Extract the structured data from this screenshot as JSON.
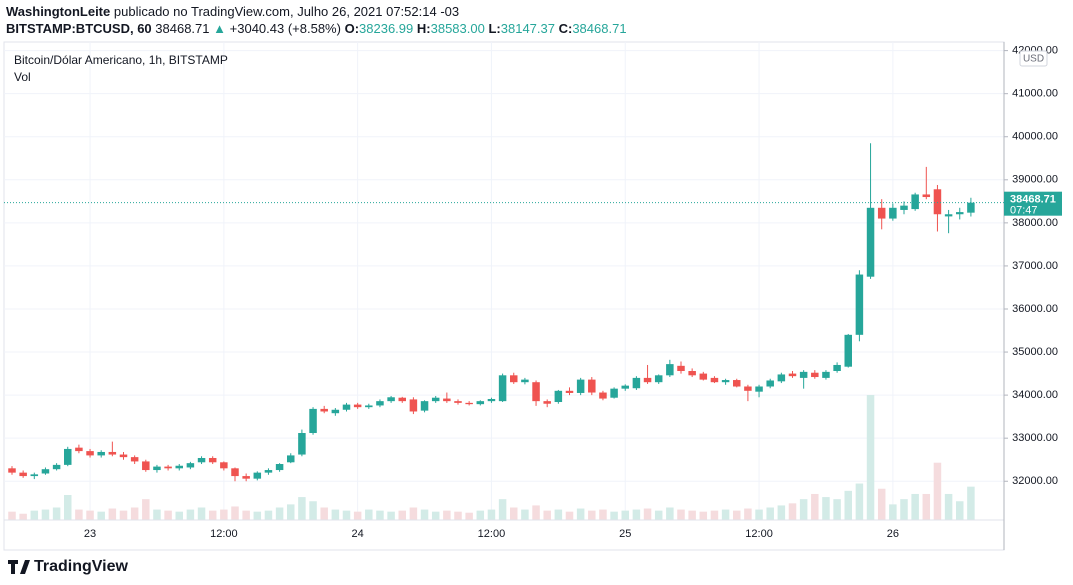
{
  "header": {
    "author": "WashingtonLeite",
    "published": "publicado no TradingView.com, Julho 26, 2021 07:52:14 -03",
    "symbol": "BITSTAMP:BTCUSD, 60",
    "price": "38468.71",
    "arrow": "▲",
    "change": "+3040.43 (+8.58%)",
    "o_label": "O:",
    "o": "38236.99",
    "h_label": "H:",
    "h": "38583.00",
    "l_label": "L:",
    "l": "38147.37",
    "c_label": "C:",
    "c": "38468.71"
  },
  "footer": {
    "brand": "TradingView"
  },
  "chart_data": {
    "type": "candlestick",
    "legend": [
      "Bitcoin/Dólar Americano, 1h, BITSTAMP",
      "Vol"
    ],
    "currency": "USD",
    "up_color": "#26a69a",
    "down_color": "#ef5350",
    "volume_up_color": "#d3ebe7",
    "volume_down_color": "#f5dcde",
    "grid": true,
    "ylim": [
      31100,
      42200
    ],
    "yticks": [
      {
        "value": 32000,
        "label": "32000.00"
      },
      {
        "value": 33000,
        "label": "33000.00"
      },
      {
        "value": 34000,
        "label": "34000.00"
      },
      {
        "value": 35000,
        "label": "35000.00"
      },
      {
        "value": 36000,
        "label": "36000.00"
      },
      {
        "value": 37000,
        "label": "37000.00"
      },
      {
        "value": 38000,
        "label": "38000.00"
      },
      {
        "value": 39000,
        "label": "39000.00"
      },
      {
        "value": 40000,
        "label": "40000.00"
      },
      {
        "value": 41000,
        "label": "41000.00"
      },
      {
        "value": 42000,
        "label": "42000.00"
      }
    ],
    "last_price": {
      "value": 38468.71,
      "label": "38468.71",
      "countdown": "07:47"
    },
    "categories": [
      null,
      null,
      null,
      null,
      null,
      null,
      null,
      "23",
      null,
      null,
      null,
      null,
      null,
      null,
      null,
      null,
      null,
      null,
      null,
      "12:00",
      null,
      null,
      null,
      null,
      null,
      null,
      null,
      null,
      null,
      null,
      null,
      "24",
      null,
      null,
      null,
      null,
      null,
      null,
      null,
      null,
      null,
      null,
      null,
      "12:00",
      null,
      null,
      null,
      null,
      null,
      null,
      null,
      null,
      null,
      null,
      null,
      "25",
      null,
      null,
      null,
      null,
      null,
      null,
      null,
      null,
      null,
      null,
      null,
      "12:00",
      null,
      null,
      null,
      null,
      null,
      null,
      null,
      null,
      null,
      null,
      null,
      "26",
      null,
      null,
      null,
      null,
      null,
      null,
      null
    ],
    "ohlc": [
      [
        32300,
        32350,
        32150,
        32200
      ],
      [
        32200,
        32250,
        32080,
        32120
      ],
      [
        32120,
        32200,
        32050,
        32160
      ],
      [
        32180,
        32320,
        32150,
        32280
      ],
      [
        32280,
        32420,
        32250,
        32380
      ],
      [
        32380,
        32800,
        32350,
        32750
      ],
      [
        32780,
        32850,
        32650,
        32700
      ],
      [
        32700,
        32750,
        32550,
        32600
      ],
      [
        32600,
        32720,
        32550,
        32680
      ],
      [
        32680,
        32920,
        32580,
        32620
      ],
      [
        32620,
        32680,
        32500,
        32560
      ],
      [
        32560,
        32600,
        32400,
        32460
      ],
      [
        32460,
        32500,
        32220,
        32260
      ],
      [
        32260,
        32380,
        32200,
        32340
      ],
      [
        32340,
        32380,
        32250,
        32300
      ],
      [
        32300,
        32400,
        32250,
        32360
      ],
      [
        32320,
        32450,
        32280,
        32420
      ],
      [
        32440,
        32580,
        32400,
        32540
      ],
      [
        32540,
        32580,
        32400,
        32440
      ],
      [
        32440,
        32460,
        32250,
        32300
      ],
      [
        32300,
        32320,
        32000,
        32120
      ],
      [
        32120,
        32180,
        32000,
        32060
      ],
      [
        32060,
        32230,
        32020,
        32200
      ],
      [
        32200,
        32300,
        32150,
        32260
      ],
      [
        32260,
        32420,
        32220,
        32400
      ],
      [
        32440,
        32650,
        32420,
        32600
      ],
      [
        32620,
        33200,
        32580,
        33120
      ],
      [
        33120,
        33720,
        33080,
        33680
      ],
      [
        33680,
        33750,
        33580,
        33620
      ],
      [
        33580,
        33700,
        33520,
        33660
      ],
      [
        33660,
        33820,
        33620,
        33780
      ],
      [
        33780,
        33820,
        33680,
        33720
      ],
      [
        33720,
        33800,
        33680,
        33760
      ],
      [
        33760,
        33900,
        33720,
        33860
      ],
      [
        33860,
        33980,
        33820,
        33950
      ],
      [
        33940,
        33960,
        33820,
        33860
      ],
      [
        33900,
        33950,
        33560,
        33620
      ],
      [
        33640,
        33880,
        33600,
        33860
      ],
      [
        33860,
        33980,
        33820,
        33940
      ],
      [
        33920,
        34060,
        33820,
        33860
      ],
      [
        33860,
        33900,
        33780,
        33820
      ],
      [
        33820,
        33860,
        33760,
        33790
      ],
      [
        33790,
        33880,
        33760,
        33860
      ],
      [
        33860,
        33940,
        33820,
        33910
      ],
      [
        33860,
        34500,
        33840,
        34460
      ],
      [
        34460,
        34520,
        34260,
        34300
      ],
      [
        34300,
        34400,
        34250,
        34360
      ],
      [
        34300,
        34340,
        33750,
        33860
      ],
      [
        33860,
        33900,
        33720,
        33800
      ],
      [
        33840,
        34120,
        33800,
        34100
      ],
      [
        34100,
        34180,
        34000,
        34050
      ],
      [
        34050,
        34400,
        34000,
        34360
      ],
      [
        34360,
        34420,
        34000,
        34060
      ],
      [
        34060,
        34100,
        33880,
        33920
      ],
      [
        33940,
        34180,
        33920,
        34150
      ],
      [
        34150,
        34250,
        34100,
        34220
      ],
      [
        34160,
        34440,
        34120,
        34400
      ],
      [
        34400,
        34700,
        34260,
        34300
      ],
      [
        34300,
        34480,
        34260,
        34460
      ],
      [
        34460,
        34820,
        34420,
        34720
      ],
      [
        34680,
        34780,
        34500,
        34560
      ],
      [
        34560,
        34620,
        34420,
        34460
      ],
      [
        34500,
        34540,
        34340,
        34360
      ],
      [
        34400,
        34440,
        34280,
        34300
      ],
      [
        34300,
        34380,
        34240,
        34350
      ],
      [
        34350,
        34380,
        34180,
        34200
      ],
      [
        34200,
        34240,
        33860,
        34100
      ],
      [
        34080,
        34240,
        33950,
        34200
      ],
      [
        34200,
        34380,
        34160,
        34340
      ],
      [
        34320,
        34520,
        34280,
        34480
      ],
      [
        34500,
        34560,
        34400,
        34440
      ],
      [
        34400,
        34580,
        34150,
        34540
      ],
      [
        34520,
        34580,
        34380,
        34420
      ],
      [
        34400,
        34580,
        34360,
        34540
      ],
      [
        34560,
        34760,
        34520,
        34700
      ],
      [
        34660,
        35420,
        34640,
        35400
      ],
      [
        35400,
        36900,
        35250,
        36800
      ],
      [
        36750,
        39850,
        36700,
        38350
      ],
      [
        38350,
        38550,
        37850,
        38100
      ],
      [
        38100,
        38450,
        38050,
        38350
      ],
      [
        38300,
        38500,
        38200,
        38400
      ],
      [
        38320,
        38700,
        38280,
        38660
      ],
      [
        38660,
        39300,
        38550,
        38600
      ],
      [
        38780,
        38880,
        37800,
        38200
      ],
      [
        38150,
        38300,
        37760,
        38200
      ],
      [
        38200,
        38350,
        38080,
        38250
      ],
      [
        38236.99,
        38583,
        38147.37,
        38468.71
      ]
    ],
    "volume": [
      8,
      6,
      9,
      10,
      12,
      24,
      10,
      9,
      8,
      11,
      9,
      12,
      20,
      10,
      9,
      8,
      10,
      12,
      9,
      10,
      13,
      9,
      8,
      9,
      12,
      15,
      22,
      18,
      12,
      10,
      9,
      8,
      10,
      9,
      8,
      9,
      12,
      10,
      8,
      9,
      8,
      7,
      9,
      10,
      20,
      12,
      10,
      14,
      9,
      10,
      8,
      11,
      9,
      10,
      8,
      9,
      10,
      11,
      9,
      12,
      10,
      9,
      8,
      9,
      10,
      9,
      11,
      10,
      12,
      14,
      16,
      20,
      25,
      22,
      20,
      28,
      35,
      120,
      30,
      15,
      20,
      25,
      25,
      55,
      25,
      18,
      32
    ]
  }
}
